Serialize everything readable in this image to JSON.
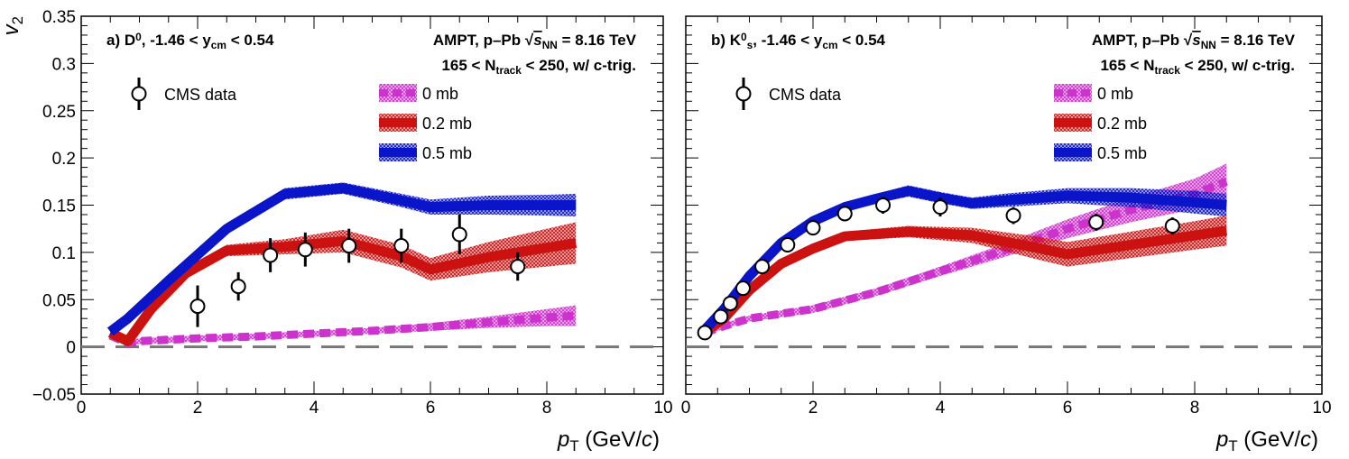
{
  "chart_data": [
    {
      "type": "line",
      "panel_label": "a) D",
      "panel_label_sup": "0",
      "panel_label_range_pre": ", -1.46 < y",
      "panel_label_range_sub": "cm",
      "panel_label_range_post": " < 0.54",
      "model_pre": "AMPT, p–Pb ",
      "model_sqrt": "√",
      "model_s": "s",
      "model_s_sub": "NN",
      "model_post": " = 8.16 TeV",
      "centrality_pre": "165 < N",
      "centrality_sub": "track",
      "centrality_post": " < 250, w/ c-trig.",
      "ylabel": "v",
      "ylabel_sub": "2",
      "xlabel": "p",
      "xlabel_sub": "T",
      "xlabel_unit_pre": " (GeV/",
      "xlabel_unit_c": "c",
      "xlabel_unit_post": ")",
      "xlim": [
        0,
        10
      ],
      "ylim": [
        -0.05,
        0.35
      ],
      "xticks": [
        0,
        2,
        4,
        6,
        8,
        10
      ],
      "yticks": [
        -0.05,
        0,
        0.05,
        0.1,
        0.15,
        0.2,
        0.25,
        0.3,
        0.35
      ],
      "ytick_labels": [
        "−0.05",
        "0",
        "0.05",
        "0.1",
        "0.15",
        "0.2",
        "0.25",
        "0.3",
        "0.35"
      ],
      "xtick_labels": [
        "0",
        "2",
        "4",
        "6",
        "8",
        "10"
      ],
      "data_label": "CMS data",
      "data": {
        "x": [
          2.0,
          2.7,
          3.25,
          3.85,
          4.6,
          5.5,
          6.5,
          7.5
        ],
        "y": [
          0.043,
          0.064,
          0.097,
          0.103,
          0.107,
          0.107,
          0.119,
          0.085
        ],
        "yerr": [
          0.022,
          0.015,
          0.018,
          0.018,
          0.018,
          0.018,
          0.021,
          0.015
        ]
      },
      "series": [
        {
          "name": "0 mb",
          "color": "#cc33cc",
          "style": "dashed-band",
          "x": [
            0.5,
            0.8,
            1.0,
            2.0,
            3.0,
            4.0,
            5.0,
            6.0,
            7.0,
            8.0,
            8.5
          ],
          "y": [
            0.012,
            0.004,
            0.006,
            0.009,
            0.011,
            0.014,
            0.017,
            0.021,
            0.026,
            0.031,
            0.033
          ],
          "err": [
            0.004,
            0.003,
            0.003,
            0.003,
            0.003,
            0.003,
            0.003,
            0.004,
            0.006,
            0.009,
            0.011
          ]
        },
        {
          "name": "0.2 mb",
          "color": "#cc1111",
          "style": "band",
          "x": [
            0.5,
            0.8,
            1.2,
            1.8,
            2.5,
            3.5,
            4.5,
            5.5,
            6.0,
            7.0,
            8.0,
            8.5
          ],
          "y": [
            0.015,
            0.006,
            0.04,
            0.078,
            0.102,
            0.106,
            0.112,
            0.096,
            0.082,
            0.095,
            0.105,
            0.11
          ],
          "err": [
            0.004,
            0.004,
            0.005,
            0.006,
            0.006,
            0.008,
            0.012,
            0.012,
            0.012,
            0.016,
            0.02,
            0.022
          ]
        },
        {
          "name": "0.5 mb",
          "color": "#0a14c8",
          "style": "band",
          "x": [
            0.5,
            0.8,
            1.5,
            2.5,
            3.5,
            4.5,
            5.5,
            6.0,
            7.0,
            8.0,
            8.5
          ],
          "y": [
            0.016,
            0.03,
            0.07,
            0.125,
            0.162,
            0.168,
            0.155,
            0.148,
            0.15,
            0.15,
            0.15
          ],
          "err": [
            0.004,
            0.005,
            0.005,
            0.006,
            0.006,
            0.006,
            0.007,
            0.008,
            0.01,
            0.011,
            0.012
          ]
        }
      ]
    },
    {
      "type": "line",
      "panel_label": "b) K",
      "panel_label_sup": "0",
      "panel_label_sub": "s",
      "panel_label_range_pre": ", -1.46 < y",
      "panel_label_range_sub": "cm",
      "panel_label_range_post": " < 0.54",
      "model_pre": "AMPT, p–Pb ",
      "model_sqrt": "√",
      "model_s": "s",
      "model_s_sub": "NN",
      "model_post": " = 8.16 TeV",
      "centrality_pre": "165 < N",
      "centrality_sub": "track",
      "centrality_post": " < 250, w/ c-trig.",
      "xlabel": "p",
      "xlabel_sub": "T",
      "xlabel_unit_pre": " (GeV/",
      "xlabel_unit_c": "c",
      "xlabel_unit_post": ")",
      "xlim": [
        0,
        10
      ],
      "ylim": [
        -0.05,
        0.35
      ],
      "xticks": [
        0,
        2,
        4,
        6,
        8,
        10
      ],
      "xtick_labels": [
        "0",
        "2",
        "4",
        "6",
        "8",
        "10"
      ],
      "data_label": "CMS data",
      "data": {
        "x": [
          0.3,
          0.55,
          0.7,
          0.9,
          1.2,
          1.6,
          2.0,
          2.5,
          3.1,
          4.0,
          5.15,
          6.45,
          7.65
        ],
        "y": [
          0.015,
          0.032,
          0.046,
          0.062,
          0.085,
          0.108,
          0.126,
          0.141,
          0.15,
          0.148,
          0.139,
          0.132,
          0.128
        ],
        "yerr": [
          0.003,
          0.003,
          0.004,
          0.004,
          0.005,
          0.006,
          0.007,
          0.008,
          0.009,
          0.01,
          0.009,
          0.009,
          0.009
        ]
      },
      "series": [
        {
          "name": "0 mb",
          "color": "#cc33cc",
          "style": "dashed-band",
          "x": [
            0.3,
            0.6,
            1.0,
            2.0,
            3.0,
            4.0,
            5.0,
            6.0,
            7.0,
            8.0,
            8.5
          ],
          "y": [
            0.015,
            0.022,
            0.03,
            0.04,
            0.058,
            0.08,
            0.102,
            0.125,
            0.145,
            0.162,
            0.175
          ],
          "err": [
            0.003,
            0.003,
            0.003,
            0.004,
            0.004,
            0.005,
            0.007,
            0.01,
            0.013,
            0.016,
            0.019
          ]
        },
        {
          "name": "0.2 mb",
          "color": "#cc1111",
          "style": "band",
          "x": [
            0.3,
            0.6,
            1.0,
            1.5,
            2.0,
            2.5,
            3.5,
            4.5,
            5.5,
            6.0,
            7.0,
            8.0,
            8.5
          ],
          "y": [
            0.016,
            0.03,
            0.06,
            0.088,
            0.104,
            0.117,
            0.122,
            0.118,
            0.105,
            0.098,
            0.108,
            0.118,
            0.123
          ],
          "err": [
            0.003,
            0.004,
            0.004,
            0.004,
            0.005,
            0.005,
            0.006,
            0.008,
            0.012,
            0.013,
            0.014,
            0.015,
            0.016
          ]
        },
        {
          "name": "0.5 mb",
          "color": "#0a14c8",
          "style": "band",
          "x": [
            0.3,
            0.6,
            1.0,
            1.5,
            2.0,
            2.5,
            3.0,
            3.5,
            4.0,
            4.5,
            5.0,
            6.0,
            7.0,
            8.0,
            8.5
          ],
          "y": [
            0.018,
            0.04,
            0.075,
            0.11,
            0.133,
            0.148,
            0.157,
            0.165,
            0.158,
            0.152,
            0.155,
            0.16,
            0.158,
            0.153,
            0.15
          ],
          "err": [
            0.003,
            0.004,
            0.004,
            0.004,
            0.005,
            0.005,
            0.005,
            0.006,
            0.006,
            0.006,
            0.007,
            0.008,
            0.01,
            0.012,
            0.012
          ]
        }
      ]
    }
  ]
}
